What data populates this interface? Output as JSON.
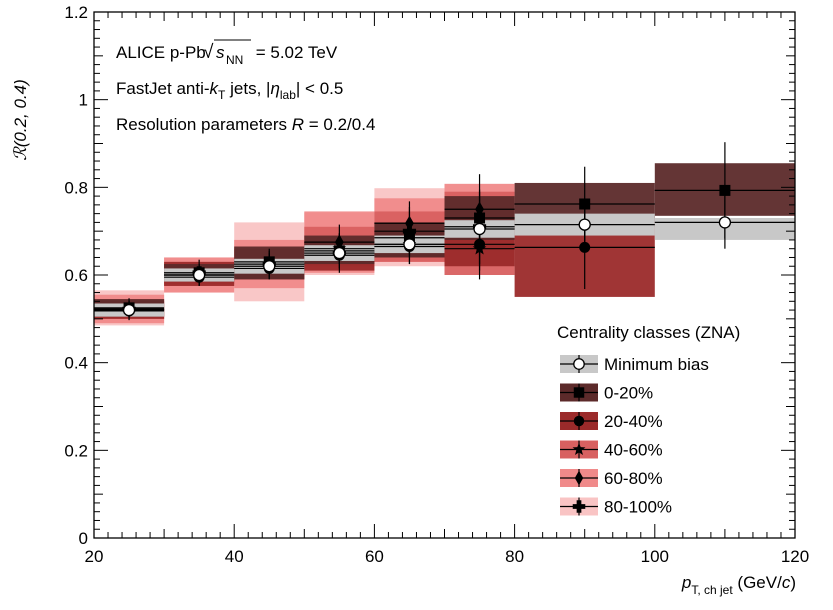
{
  "chart_data": {
    "type": "scatter",
    "annotations": [
      "ALICE p-Pb √s_NN = 5.02 TeV",
      "FastJet anti-k_T jets, |η_lab| < 0.5",
      "Resolution parameters R = 0.2/0.4"
    ],
    "annotation_parts": {
      "line1_prefix": "ALICE p-Pb ",
      "line1_sqrt_s": "s",
      "line1_sqrt_sub": "NN",
      "line1_suffix": " = 5.02 TeV",
      "line2_prefix": "FastJet anti-",
      "line2_k": "k",
      "line2_k_sub": "T",
      "line2_mid": " jets, |",
      "line2_eta": "η",
      "line2_eta_sub": "lab",
      "line2_suffix": "| < 0.5",
      "line3_prefix": "Resolution parameters ",
      "line3_R": "R",
      "line3_suffix": " = 0.2/0.4"
    },
    "ylabel": "ℛ(0.2, 0.4)",
    "xlabel_parts": {
      "p": "p",
      "sub": "T, ch jet",
      "unit_prefix": " (GeV/",
      "unit_c": "c",
      "unit_suffix": ")"
    },
    "xlim": [
      20,
      120
    ],
    "ylim": [
      0,
      1.2
    ],
    "xticks": [
      20,
      40,
      60,
      80,
      100,
      120
    ],
    "yticks": [
      0,
      0.2,
      0.4,
      0.6,
      0.8,
      1.0,
      1.2
    ],
    "ytick_labels": [
      "0",
      "0.2",
      "0.4",
      "0.6",
      "0.8",
      "1",
      "1.2"
    ],
    "legend_title": "Centrality classes (ZNA)",
    "legend_position": "bottom-right",
    "series": [
      {
        "name": "Minimum bias",
        "marker": "open-circle",
        "box_color": "#c8c8c8",
        "points": [
          {
            "x": 25,
            "xlo": 20,
            "xhi": 30,
            "y": 0.52,
            "stat": 0.012,
            "sys_lo": 0.505,
            "sys_hi": 0.535
          },
          {
            "x": 35,
            "xlo": 30,
            "xhi": 40,
            "y": 0.6,
            "stat": 0.012,
            "sys_lo": 0.585,
            "sys_hi": 0.615
          },
          {
            "x": 45,
            "xlo": 40,
            "xhi": 50,
            "y": 0.62,
            "stat": 0.012,
            "sys_lo": 0.603,
            "sys_hi": 0.637
          },
          {
            "x": 55,
            "xlo": 50,
            "xhi": 60,
            "y": 0.65,
            "stat": 0.015,
            "sys_lo": 0.632,
            "sys_hi": 0.668
          },
          {
            "x": 65,
            "xlo": 60,
            "xhi": 70,
            "y": 0.67,
            "stat": 0.02,
            "sys_lo": 0.65,
            "sys_hi": 0.69
          },
          {
            "x": 75,
            "xlo": 70,
            "xhi": 80,
            "y": 0.705,
            "stat": 0.03,
            "sys_lo": 0.685,
            "sys_hi": 0.725
          },
          {
            "x": 90,
            "xlo": 80,
            "xhi": 100,
            "y": 0.715,
            "stat": 0.045,
            "sys_lo": 0.69,
            "sys_hi": 0.74
          },
          {
            "x": 110,
            "xlo": 100,
            "xhi": 120,
            "y": 0.72,
            "stat": 0.06,
            "sys_lo": 0.68,
            "sys_hi": 0.73
          }
        ]
      },
      {
        "name": "0-20%",
        "marker": "square",
        "box_color": "#5c2a2a",
        "points": [
          {
            "x": 25,
            "xlo": 20,
            "xhi": 30,
            "y": 0.525,
            "stat": 0.015,
            "sys_lo": 0.505,
            "sys_hi": 0.545
          },
          {
            "x": 35,
            "xlo": 30,
            "xhi": 40,
            "y": 0.605,
            "stat": 0.015,
            "sys_lo": 0.585,
            "sys_hi": 0.625
          },
          {
            "x": 45,
            "xlo": 40,
            "xhi": 50,
            "y": 0.63,
            "stat": 0.02,
            "sys_lo": 0.59,
            "sys_hi": 0.665
          },
          {
            "x": 55,
            "xlo": 50,
            "xhi": 60,
            "y": 0.655,
            "stat": 0.025,
            "sys_lo": 0.625,
            "sys_hi": 0.69
          },
          {
            "x": 65,
            "xlo": 60,
            "xhi": 70,
            "y": 0.685,
            "stat": 0.035,
            "sys_lo": 0.64,
            "sys_hi": 0.72
          },
          {
            "x": 75,
            "xlo": 70,
            "xhi": 80,
            "y": 0.73,
            "stat": 0.06,
            "sys_lo": 0.68,
            "sys_hi": 0.78
          },
          {
            "x": 90,
            "xlo": 80,
            "xhi": 100,
            "y": 0.762,
            "stat": 0.085,
            "sys_lo": 0.71,
            "sys_hi": 0.81
          },
          {
            "x": 110,
            "xlo": 100,
            "xhi": 120,
            "y": 0.793,
            "stat": 0.11,
            "sys_lo": 0.735,
            "sys_hi": 0.855
          }
        ]
      },
      {
        "name": "20-40%",
        "marker": "circle",
        "box_color": "#9b2a2a",
        "points": [
          {
            "x": 25,
            "xlo": 20,
            "xhi": 30,
            "y": 0.518,
            "stat": 0.015,
            "sys_lo": 0.5,
            "sys_hi": 0.54
          },
          {
            "x": 35,
            "xlo": 30,
            "xhi": 40,
            "y": 0.595,
            "stat": 0.018,
            "sys_lo": 0.575,
            "sys_hi": 0.63
          },
          {
            "x": 45,
            "xlo": 40,
            "xhi": 50,
            "y": 0.615,
            "stat": 0.025,
            "sys_lo": 0.59,
            "sys_hi": 0.64
          },
          {
            "x": 55,
            "xlo": 50,
            "xhi": 60,
            "y": 0.645,
            "stat": 0.03,
            "sys_lo": 0.61,
            "sys_hi": 0.675
          },
          {
            "x": 65,
            "xlo": 60,
            "xhi": 70,
            "y": 0.665,
            "stat": 0.04,
            "sys_lo": 0.64,
            "sys_hi": 0.7
          },
          {
            "x": 75,
            "xlo": 70,
            "xhi": 80,
            "y": 0.67,
            "stat": 0.06,
            "sys_lo": 0.62,
            "sys_hi": 0.72
          },
          {
            "x": 90,
            "xlo": 80,
            "xhi": 100,
            "y": 0.663,
            "stat": 0.095,
            "sys_lo": 0.55,
            "sys_hi": 0.74
          },
          {
            "x": 110,
            "xlo": 100,
            "xhi": 120,
            "y": null,
            "stat": null,
            "sys_lo": null,
            "sys_hi": null
          }
        ]
      },
      {
        "name": "40-60%",
        "marker": "star",
        "box_color": "#d86060",
        "points": [
          {
            "x": 25,
            "xlo": 20,
            "xhi": 30,
            "y": 0.522,
            "stat": 0.018,
            "sys_lo": 0.5,
            "sys_hi": 0.545
          },
          {
            "x": 35,
            "xlo": 30,
            "xhi": 40,
            "y": 0.6,
            "stat": 0.02,
            "sys_lo": 0.58,
            "sys_hi": 0.625
          },
          {
            "x": 45,
            "xlo": 40,
            "xhi": 50,
            "y": 0.625,
            "stat": 0.025,
            "sys_lo": 0.59,
            "sys_hi": 0.66
          },
          {
            "x": 55,
            "xlo": 50,
            "xhi": 60,
            "y": 0.66,
            "stat": 0.035,
            "sys_lo": 0.62,
            "sys_hi": 0.71
          },
          {
            "x": 65,
            "xlo": 60,
            "xhi": 70,
            "y": 0.67,
            "stat": 0.045,
            "sys_lo": 0.63,
            "sys_hi": 0.745
          },
          {
            "x": 75,
            "xlo": 70,
            "xhi": 80,
            "y": 0.66,
            "stat": 0.07,
            "sys_lo": 0.6,
            "sys_hi": 0.79
          },
          {
            "x": 90,
            "xlo": 80,
            "xhi": 100,
            "y": null,
            "stat": null,
            "sys_lo": null,
            "sys_hi": null
          },
          {
            "x": 110,
            "xlo": 100,
            "xhi": 120,
            "y": null,
            "stat": null,
            "sys_lo": null,
            "sys_hi": null
          }
        ]
      },
      {
        "name": "60-80%",
        "marker": "diamond",
        "box_color": "#f08a8a",
        "points": [
          {
            "x": 25,
            "xlo": 20,
            "xhi": 30,
            "y": 0.52,
            "stat": 0.022,
            "sys_lo": 0.49,
            "sys_hi": 0.555
          },
          {
            "x": 35,
            "xlo": 30,
            "xhi": 40,
            "y": 0.6,
            "stat": 0.025,
            "sys_lo": 0.56,
            "sys_hi": 0.64
          },
          {
            "x": 45,
            "xlo": 40,
            "xhi": 50,
            "y": 0.625,
            "stat": 0.03,
            "sys_lo": 0.57,
            "sys_hi": 0.68
          },
          {
            "x": 55,
            "xlo": 50,
            "xhi": 60,
            "y": 0.675,
            "stat": 0.04,
            "sys_lo": 0.605,
            "sys_hi": 0.745
          },
          {
            "x": 65,
            "xlo": 60,
            "xhi": 70,
            "y": 0.718,
            "stat": 0.05,
            "sys_lo": 0.63,
            "sys_hi": 0.775
          },
          {
            "x": 75,
            "xlo": 70,
            "xhi": 80,
            "y": 0.75,
            "stat": 0.08,
            "sys_lo": 0.66,
            "sys_hi": 0.808
          },
          {
            "x": 90,
            "xlo": 80,
            "xhi": 100,
            "y": null,
            "stat": null,
            "sys_lo": null,
            "sys_hi": null
          },
          {
            "x": 110,
            "xlo": 100,
            "xhi": 120,
            "y": null,
            "stat": null,
            "sys_lo": null,
            "sys_hi": null
          }
        ]
      },
      {
        "name": "80-100%",
        "marker": "cross",
        "box_color": "#f9c4c4",
        "points": [
          {
            "x": 25,
            "xlo": 20,
            "xhi": 30,
            "y": 0.522,
            "stat": 0.025,
            "sys_lo": 0.485,
            "sys_hi": 0.565
          },
          {
            "x": 35,
            "xlo": 30,
            "xhi": 40,
            "y": 0.605,
            "stat": 0.03,
            "sys_lo": 0.56,
            "sys_hi": 0.64
          },
          {
            "x": 45,
            "xlo": 40,
            "xhi": 50,
            "y": 0.625,
            "stat": 0.035,
            "sys_lo": 0.54,
            "sys_hi": 0.72
          },
          {
            "x": 55,
            "xlo": 50,
            "xhi": 60,
            "y": 0.65,
            "stat": 0.045,
            "sys_lo": 0.6,
            "sys_hi": 0.742
          },
          {
            "x": 65,
            "xlo": 60,
            "xhi": 70,
            "y": 0.7,
            "stat": 0.055,
            "sys_lo": 0.62,
            "sys_hi": 0.798
          },
          {
            "x": 75,
            "xlo": 70,
            "xhi": 80,
            "y": 0.71,
            "stat": 0.085,
            "sys_lo": 0.62,
            "sys_hi": 0.79
          },
          {
            "x": 90,
            "xlo": 80,
            "xhi": 100,
            "y": null,
            "stat": null,
            "sys_lo": null,
            "sys_hi": null
          },
          {
            "x": 110,
            "xlo": 100,
            "xhi": 120,
            "y": null,
            "stat": null,
            "sys_lo": null,
            "sys_hi": null
          }
        ]
      }
    ]
  }
}
